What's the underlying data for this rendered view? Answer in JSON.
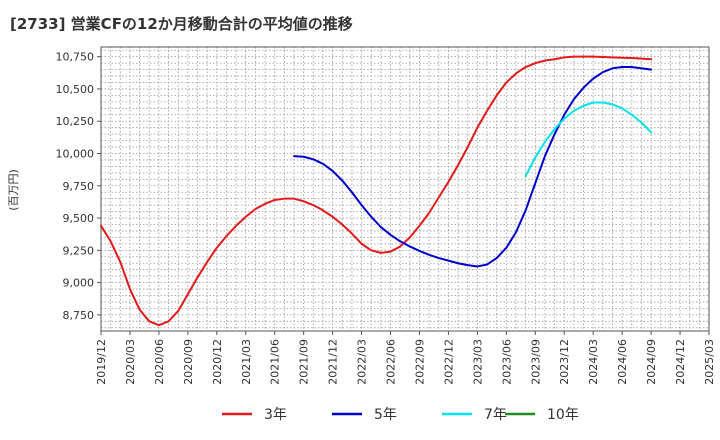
{
  "chart_data": {
    "type": "line",
    "title": "[2733]  営業CFの12か月移動合計の平均値の推移",
    "ylabel": "(百万円)",
    "xlabel": "",
    "ylim": [
      8625,
      10825
    ],
    "xlim": [
      "2019-12",
      "2025-03"
    ],
    "grid": true,
    "legend_placement": "bottom",
    "y_ticks": [
      "8,750",
      "9,000",
      "9,250",
      "9,500",
      "9,750",
      "10,000",
      "10,250",
      "10,500",
      "10,750"
    ],
    "y_tick_values": [
      8750,
      9000,
      9250,
      9500,
      9750,
      10000,
      10250,
      10500,
      10750
    ],
    "x_ticks": [
      "2019/12",
      "2020/03",
      "2020/06",
      "2020/09",
      "2020/12",
      "2021/03",
      "2021/06",
      "2021/09",
      "2021/12",
      "2022/03",
      "2022/06",
      "2022/09",
      "2022/12",
      "2023/03",
      "2023/06",
      "2023/09",
      "2023/12",
      "2024/03",
      "2024/06",
      "2024/09",
      "2024/12",
      "2025/03"
    ],
    "series": [
      {
        "name": "3年",
        "color": "#e41a1c",
        "x": [
          "2019-12",
          "2020-01",
          "2020-02",
          "2020-03",
          "2020-04",
          "2020-05",
          "2020-06",
          "2020-07",
          "2020-08",
          "2020-09",
          "2020-10",
          "2020-11",
          "2020-12",
          "2021-01",
          "2021-02",
          "2021-03",
          "2021-04",
          "2021-05",
          "2021-06",
          "2021-07",
          "2021-08",
          "2021-09",
          "2021-10",
          "2021-11",
          "2021-12",
          "2022-01",
          "2022-02",
          "2022-03",
          "2022-04",
          "2022-05",
          "2022-06",
          "2022-07",
          "2022-08",
          "2022-09",
          "2022-10",
          "2022-11",
          "2022-12",
          "2023-01",
          "2023-02",
          "2023-03",
          "2023-04",
          "2023-05",
          "2023-06",
          "2023-07",
          "2023-08",
          "2023-09",
          "2023-10",
          "2023-11",
          "2023-12",
          "2024-01",
          "2024-02",
          "2024-03",
          "2024-04",
          "2024-05",
          "2024-06",
          "2024-07",
          "2024-08",
          "2024-09"
        ],
        "values": [
          9440,
          9320,
          9160,
          8950,
          8790,
          8700,
          8670,
          8700,
          8780,
          8910,
          9040,
          9160,
          9270,
          9360,
          9440,
          9510,
          9570,
          9610,
          9640,
          9650,
          9650,
          9630,
          9600,
          9560,
          9510,
          9450,
          9380,
          9300,
          9250,
          9230,
          9240,
          9280,
          9350,
          9440,
          9540,
          9660,
          9780,
          9910,
          10050,
          10200,
          10330,
          10450,
          10550,
          10620,
          10670,
          10700,
          10720,
          10730,
          10745,
          10750,
          10750,
          10750,
          10748,
          10745,
          10742,
          10740,
          10735,
          10730
        ]
      },
      {
        "name": "5年",
        "color": "#0000cc",
        "x": [
          "2021-08",
          "2021-09",
          "2021-10",
          "2021-11",
          "2021-12",
          "2022-01",
          "2022-02",
          "2022-03",
          "2022-04",
          "2022-05",
          "2022-06",
          "2022-07",
          "2022-08",
          "2022-09",
          "2022-10",
          "2022-11",
          "2022-12",
          "2023-01",
          "2023-02",
          "2023-03",
          "2023-04",
          "2023-05",
          "2023-06",
          "2023-07",
          "2023-08",
          "2023-09",
          "2023-10",
          "2023-11",
          "2023-12",
          "2024-01",
          "2024-02",
          "2024-03",
          "2024-04",
          "2024-05",
          "2024-06",
          "2024-07",
          "2024-08",
          "2024-09"
        ],
        "values": [
          9980,
          9975,
          9955,
          9920,
          9865,
          9790,
          9700,
          9600,
          9510,
          9430,
          9370,
          9320,
          9280,
          9245,
          9215,
          9190,
          9170,
          9150,
          9135,
          9125,
          9140,
          9190,
          9270,
          9390,
          9560,
          9770,
          9980,
          10150,
          10300,
          10420,
          10510,
          10580,
          10630,
          10660,
          10670,
          10670,
          10660,
          10650
        ]
      },
      {
        "name": "7年",
        "color": "#00e5ee",
        "x": [
          "2023-08",
          "2023-09",
          "2023-10",
          "2023-11",
          "2023-12",
          "2024-01",
          "2024-02",
          "2024-03",
          "2024-04",
          "2024-05",
          "2024-06",
          "2024-07",
          "2024-08",
          "2024-09"
        ],
        "values": [
          9825,
          9970,
          10090,
          10190,
          10270,
          10330,
          10370,
          10395,
          10395,
          10380,
          10350,
          10300,
          10240,
          10165
        ]
      },
      {
        "name": "10年",
        "color": "#228b22",
        "x": [],
        "values": []
      }
    ]
  }
}
